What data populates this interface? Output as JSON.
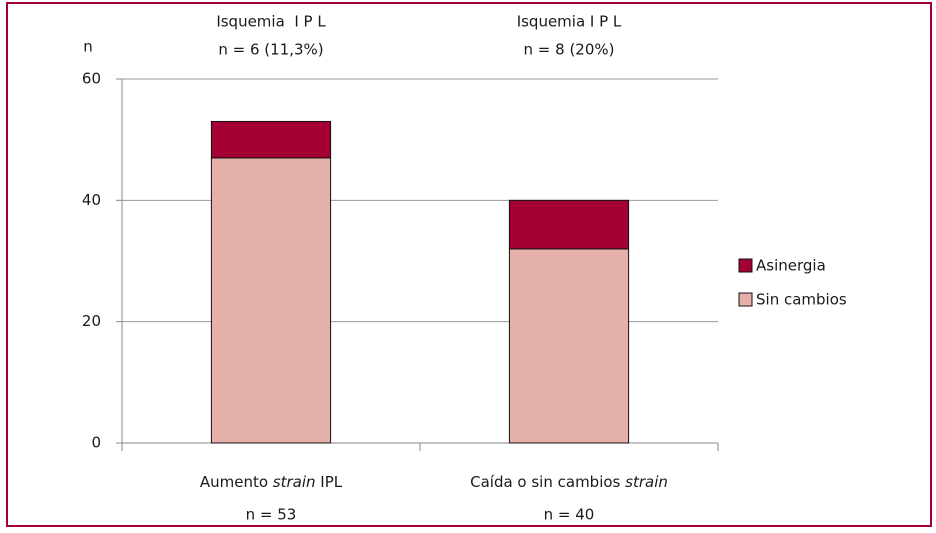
{
  "chart_data": {
    "type": "stacked_bar",
    "y_axis_label": "n",
    "categories": [
      [
        "Aumento ",
        "strain",
        " IPL"
      ],
      [
        "Caída o sin cambios ",
        "strain"
      ]
    ],
    "italic_parts": [
      [
        1
      ],
      [
        1
      ]
    ],
    "category_counts": [
      "n = 53",
      "n = 40"
    ],
    "top_labels": [
      [
        "Isquemia  I P L",
        "n = 6 (11,3%)"
      ],
      [
        "Isquemia I P L",
        "n = 8 (20%)"
      ]
    ],
    "series": [
      {
        "name": "Sin cambios",
        "color": "#e6b0aa",
        "values": [
          47,
          32
        ]
      },
      {
        "name": "Asinergia",
        "color": "#a50034",
        "values": [
          6,
          8
        ]
      }
    ],
    "ylim": [
      0,
      60
    ],
    "yticks": [
      0,
      20,
      40,
      60
    ],
    "grid": true,
    "legend": "right",
    "frame_color": "#a50034"
  }
}
